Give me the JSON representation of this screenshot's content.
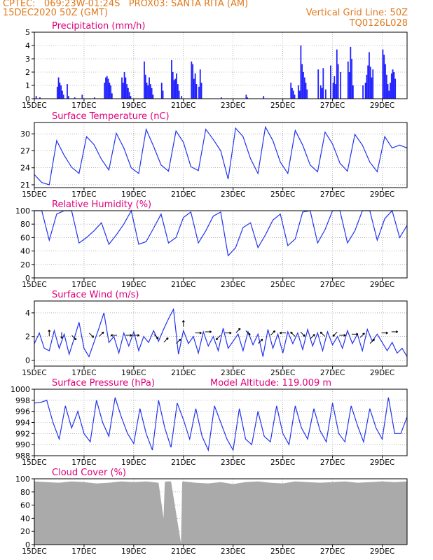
{
  "header": {
    "line1_left": "CPTEC:   069:23W-01:24S   PROX03: SANTA RITA (AM)",
    "line2_left": "15DEC2020 50Z (GMT)",
    "line2_right": "Vertical Grid Line: 50Z",
    "line3_right": "TQ0126L028",
    "accent_color": "#e07a1e",
    "title_color": "#e0007a"
  },
  "x_axis": {
    "tick_labels": [
      "15DEC",
      "17DEC",
      "19DEC",
      "21DEC",
      "23DEC",
      "25DEC",
      "27DEC",
      "29DEC"
    ],
    "tick_days": [
      0,
      2,
      4,
      6,
      8,
      10,
      12,
      14
    ],
    "range_days": [
      0,
      15
    ]
  },
  "chart_data": [
    {
      "id": "precip",
      "type": "bar",
      "title": "Precipitation (mm/h)",
      "ylim": [
        0,
        5
      ],
      "yticks": [
        0,
        1,
        2,
        3,
        4,
        5
      ],
      "color": "#2222ff",
      "series": [
        {
          "x": [
            0.05,
            0.2,
            0.9,
            0.95,
            1.0,
            1.05,
            1.1,
            1.15,
            1.3,
            1.35,
            1.6,
            1.9,
            2.4,
            2.8,
            2.85,
            2.9,
            2.95,
            3.0,
            3.05,
            3.1,
            3.5,
            3.55,
            3.6,
            3.65,
            3.7,
            3.75,
            3.8,
            3.85,
            4.4,
            4.45,
            4.5,
            4.55,
            4.6,
            4.65,
            4.7,
            4.75,
            5.1,
            5.15,
            5.5,
            5.55,
            5.6,
            5.65,
            5.7,
            5.75,
            5.8,
            5.9,
            6.3,
            6.35,
            6.4,
            6.45,
            6.5,
            6.6,
            6.65,
            6.7,
            7.5,
            8.5,
            8.55,
            9.2,
            10.3,
            10.35,
            10.4,
            10.45,
            10.6,
            10.65,
            10.7,
            10.75,
            10.8,
            10.85,
            10.9,
            10.95,
            11.4,
            11.5,
            11.55,
            11.6,
            11.7,
            11.9,
            12.0,
            12.05,
            12.1,
            12.15,
            12.2,
            12.3,
            12.6,
            12.65,
            12.7,
            12.75,
            12.8,
            13.2,
            13.3,
            13.35,
            13.4,
            13.45,
            13.5,
            13.55,
            13.6,
            14.0,
            14.05,
            14.1,
            14.15,
            14.2,
            14.25,
            14.3,
            14.35,
            14.4,
            14.45,
            14.5
          ],
          "values": [
            0.2,
            0.1,
            0.9,
            1.6,
            1.2,
            1.0,
            0.6,
            0.3,
            1.1,
            0.2,
            0.1,
            0.3,
            0.1,
            1.2,
            1.6,
            1.7,
            1.5,
            1.2,
            1.0,
            0.4,
            1.6,
            1.2,
            2.0,
            1.6,
            1.1,
            0.8,
            0.5,
            0.2,
            2.8,
            1.8,
            1.2,
            1.0,
            1.6,
            1.1,
            0.8,
            0.3,
            1.2,
            0.6,
            2.9,
            2.0,
            1.4,
            1.5,
            1.9,
            1.1,
            0.6,
            0.2,
            2.8,
            2.6,
            1.5,
            1.9,
            1.1,
            0.9,
            2.2,
            1.2,
            0.1,
            0.3,
            0.1,
            0.2,
            1.2,
            0.8,
            0.6,
            0.3,
            1.0,
            0.6,
            4.0,
            2.6,
            2.0,
            1.6,
            1.2,
            0.7,
            2.2,
            1.0,
            0.8,
            2.3,
            0.7,
            2.5,
            1.2,
            1.7,
            1.1,
            3.7,
            2.6,
            2.0,
            2.8,
            2.0,
            3.9,
            3.0,
            1.0,
            1.0,
            1.2,
            1.8,
            2.5,
            3.5,
            2.4,
            1.6,
            2.2,
            3.7,
            3.3,
            2.6,
            1.8,
            1.1,
            0.6,
            1.2,
            1.9,
            2.2,
            2.0,
            1.5
          ]
        }
      ]
    },
    {
      "id": "temp",
      "type": "line",
      "title": "Surface Temperature (nC)",
      "ylim": [
        20.5,
        32
      ],
      "yticks": [
        21,
        24,
        27,
        30
      ],
      "color": "#2233ee",
      "series": [
        {
          "x": [
            0,
            0.3,
            0.6,
            0.9,
            1.2,
            1.5,
            1.8,
            2.1,
            2.4,
            2.7,
            3.0,
            3.3,
            3.6,
            3.9,
            4.2,
            4.5,
            4.8,
            5.1,
            5.4,
            5.7,
            6.0,
            6.3,
            6.6,
            6.9,
            7.2,
            7.5,
            7.8,
            8.1,
            8.4,
            8.7,
            9.0,
            9.3,
            9.6,
            9.9,
            10.2,
            10.5,
            10.8,
            11.1,
            11.4,
            11.7,
            12.0,
            12.3,
            12.6,
            12.9,
            13.2,
            13.5,
            13.8,
            14.1,
            14.4,
            14.7,
            15.0
          ],
          "values": [
            22.8,
            21.4,
            21.0,
            28.8,
            26.2,
            24.1,
            23.0,
            29.5,
            28.1,
            25.5,
            23.6,
            30.1,
            27.5,
            24.0,
            23.0,
            30.8,
            27.8,
            24.5,
            23.4,
            30.5,
            28.5,
            24.2,
            23.5,
            30.8,
            29.0,
            27.0,
            22.0,
            31.0,
            29.5,
            25.6,
            23.0,
            31.2,
            28.8,
            25.0,
            23.0,
            30.6,
            28.0,
            24.5,
            23.3,
            30.3,
            28.2,
            24.8,
            23.4,
            29.9,
            28.0,
            25.0,
            23.3,
            29.5,
            27.5,
            28.0,
            27.5
          ]
        }
      ]
    },
    {
      "id": "rh",
      "type": "line",
      "title": "Relative Humidity (%)",
      "ylim": [
        0,
        100
      ],
      "yticks": [
        0,
        20,
        40,
        60,
        80,
        100
      ],
      "color": "#2233ee",
      "series": [
        {
          "x": [
            0,
            0.3,
            0.6,
            0.9,
            1.2,
            1.5,
            1.8,
            2.1,
            2.4,
            2.7,
            3.0,
            3.3,
            3.6,
            3.9,
            4.2,
            4.5,
            4.8,
            5.1,
            5.4,
            5.7,
            6.0,
            6.3,
            6.6,
            6.9,
            7.2,
            7.5,
            7.8,
            8.1,
            8.4,
            8.7,
            9.0,
            9.3,
            9.6,
            9.9,
            10.2,
            10.5,
            10.8,
            11.1,
            11.4,
            11.7,
            12.0,
            12.3,
            12.6,
            12.9,
            13.2,
            13.5,
            13.8,
            14.1,
            14.4,
            14.7,
            15.0
          ],
          "values": [
            100,
            100,
            56,
            95,
            100,
            100,
            52,
            60,
            70,
            82,
            50,
            64,
            80,
            100,
            50,
            54,
            74,
            95,
            52,
            60,
            90,
            98,
            52,
            70,
            92,
            98,
            33,
            45,
            75,
            82,
            45,
            64,
            86,
            95,
            48,
            58,
            98,
            100,
            52,
            72,
            100,
            100,
            52,
            70,
            100,
            100,
            56,
            88,
            100,
            60,
            78
          ]
        }
      ]
    },
    {
      "id": "wind",
      "type": "line",
      "title": "Surface Wind (m/s)",
      "ylim": [
        -0.5,
        5
      ],
      "yticks": [
        0,
        2,
        4
      ],
      "color": "#2233ee",
      "series": [
        {
          "x": [
            0,
            0.2,
            0.4,
            0.6,
            0.8,
            1.0,
            1.2,
            1.4,
            1.6,
            1.8,
            2.0,
            2.2,
            2.4,
            2.6,
            2.8,
            3.0,
            3.2,
            3.4,
            3.6,
            3.8,
            4.0,
            4.2,
            4.4,
            4.6,
            4.8,
            5.0,
            5.2,
            5.4,
            5.6,
            5.8,
            6.0,
            6.2,
            6.4,
            6.6,
            6.8,
            7.0,
            7.2,
            7.4,
            7.6,
            7.8,
            8.0,
            8.2,
            8.4,
            8.6,
            8.8,
            9.0,
            9.2,
            9.4,
            9.6,
            9.8,
            10.0,
            10.2,
            10.4,
            10.6,
            10.8,
            11.0,
            11.2,
            11.4,
            11.6,
            11.8,
            12.0,
            12.2,
            12.4,
            12.6,
            12.8,
            13.0,
            13.2,
            13.4,
            13.6,
            13.8,
            14.0,
            14.2,
            14.4,
            14.6,
            14.8,
            15.0
          ],
          "values": [
            1.4,
            2.3,
            1.0,
            0.8,
            2.5,
            1.0,
            2.2,
            0.5,
            1.8,
            3.2,
            1.0,
            0.3,
            1.5,
            2.7,
            4.0,
            1.5,
            2.0,
            0.6,
            2.3,
            1.2,
            2.4,
            0.8,
            2.0,
            1.5,
            2.5,
            1.6,
            2.6,
            3.5,
            4.3,
            0.5,
            2.5,
            1.4,
            2.0,
            0.6,
            2.4,
            1.2,
            2.0,
            0.8,
            2.7,
            1.0,
            1.6,
            2.2,
            0.8,
            2.4,
            1.3,
            2.2,
            0.3,
            2.6,
            1.0,
            2.2,
            0.6,
            2.4,
            1.4,
            2.3,
            0.9,
            2.6,
            1.2,
            2.3,
            0.8,
            2.4,
            1.3,
            2.0,
            1.0,
            2.5,
            1.4,
            2.2,
            0.8,
            2.6,
            1.6,
            2.2,
            1.5,
            0.8,
            1.5,
            0.6,
            1.0,
            0.3
          ]
        }
      ],
      "arrows": [
        {
          "x": 0.6,
          "y": 2.3,
          "dx": 0,
          "dy": 1
        },
        {
          "x": 1.1,
          "y": 2.1,
          "dx": 0,
          "dy": -1
        },
        {
          "x": 1.6,
          "y": 1.9,
          "dx": 0.7,
          "dy": -0.7
        },
        {
          "x": 2.3,
          "y": 2.1,
          "dx": 0.7,
          "dy": -0.7
        },
        {
          "x": 2.7,
          "y": 2.2,
          "dx": 0.7,
          "dy": 0.7
        },
        {
          "x": 3.2,
          "y": 2.1,
          "dx": -1,
          "dy": 0
        },
        {
          "x": 3.8,
          "y": 2.1,
          "dx": 1,
          "dy": 0
        },
        {
          "x": 4.1,
          "y": 2.1,
          "dx": 1,
          "dy": 0
        },
        {
          "x": 4.9,
          "y": 2.0,
          "dx": 0.7,
          "dy": -0.7
        },
        {
          "x": 5.3,
          "y": 1.7,
          "dx": 0.7,
          "dy": 0.7
        },
        {
          "x": 5.8,
          "y": 1.6,
          "dx": 0.7,
          "dy": 0.7
        },
        {
          "x": 6.0,
          "y": 3.1,
          "dx": 0,
          "dy": 1
        },
        {
          "x": 6.6,
          "y": 2.3,
          "dx": 1,
          "dy": 0
        },
        {
          "x": 7.0,
          "y": 2.4,
          "dx": 1,
          "dy": 0
        },
        {
          "x": 7.4,
          "y": 1.9,
          "dx": -0.7,
          "dy": -0.7
        },
        {
          "x": 7.8,
          "y": 2.3,
          "dx": 1,
          "dy": 0
        },
        {
          "x": 8.2,
          "y": 2.5,
          "dx": 0.7,
          "dy": 0.7
        },
        {
          "x": 8.6,
          "y": 2.3,
          "dx": 0.7,
          "dy": -0.7
        },
        {
          "x": 9.1,
          "y": 1.6,
          "dx": 0.7,
          "dy": 0.7
        },
        {
          "x": 9.6,
          "y": 2.3,
          "dx": 0.7,
          "dy": 0.7
        },
        {
          "x": 10.0,
          "y": 2.3,
          "dx": -1,
          "dy": 0
        },
        {
          "x": 10.4,
          "y": 2.2,
          "dx": -0.7,
          "dy": 0.7
        },
        {
          "x": 10.8,
          "y": 2.2,
          "dx": 0.7,
          "dy": -0.7
        },
        {
          "x": 11.2,
          "y": 2.0,
          "dx": 0.7,
          "dy": 0.7
        },
        {
          "x": 11.6,
          "y": 2.2,
          "dx": -0.7,
          "dy": 0.7
        },
        {
          "x": 12.1,
          "y": 2.2,
          "dx": -0.7,
          "dy": -0.7
        },
        {
          "x": 12.4,
          "y": 2.1,
          "dx": 1,
          "dy": 0
        },
        {
          "x": 12.9,
          "y": 2.2,
          "dx": 1,
          "dy": 0
        },
        {
          "x": 13.2,
          "y": 2.1,
          "dx": 0.7,
          "dy": 0.7
        },
        {
          "x": 13.6,
          "y": 1.6,
          "dx": 0.7,
          "dy": 0.7
        },
        {
          "x": 14.1,
          "y": 2.3,
          "dx": 1,
          "dy": 0
        },
        {
          "x": 14.5,
          "y": 2.4,
          "dx": 1,
          "dy": 0
        }
      ]
    },
    {
      "id": "pressure",
      "type": "line",
      "title": "Surface Pressure (hPa)",
      "subtitle": "Model Altitude: 119.009  m",
      "ylim": [
        988,
        1000
      ],
      "yticks": [
        988,
        990,
        992,
        994,
        996,
        998,
        1000
      ],
      "color": "#2233ee",
      "series": [
        {
          "x": [
            0,
            0.25,
            0.5,
            0.75,
            1.0,
            1.25,
            1.5,
            1.75,
            2.0,
            2.25,
            2.5,
            2.75,
            3.0,
            3.25,
            3.5,
            3.75,
            4.0,
            4.25,
            4.5,
            4.75,
            5.0,
            5.25,
            5.5,
            5.75,
            6.0,
            6.25,
            6.5,
            6.75,
            7.0,
            7.25,
            7.5,
            7.75,
            8.0,
            8.25,
            8.5,
            8.75,
            9.0,
            9.25,
            9.5,
            9.75,
            10.0,
            10.25,
            10.5,
            10.75,
            11.0,
            11.25,
            11.5,
            11.75,
            12.0,
            12.25,
            12.5,
            12.75,
            13.0,
            13.25,
            13.5,
            13.75,
            14.0,
            14.25,
            14.5,
            14.75,
            15.0
          ],
          "values": [
            997.5,
            997.6,
            998.0,
            994.0,
            991.0,
            997.0,
            993.0,
            996.0,
            992.0,
            990.5,
            998.0,
            994.0,
            991.5,
            998.5,
            995.0,
            992.0,
            990.2,
            996.5,
            992.0,
            989.0,
            998.0,
            993.0,
            989.5,
            997.5,
            994.5,
            991.0,
            996.5,
            991.5,
            989.0,
            997.0,
            994.0,
            991.0,
            989.0,
            996.5,
            991.0,
            990.0,
            996.0,
            991.5,
            990.5,
            997.0,
            992.0,
            990.0,
            997.0,
            993.0,
            991.0,
            996.5,
            992.5,
            990.5,
            997.5,
            992.0,
            990.5,
            997.0,
            993.5,
            990.5,
            996.5,
            993.0,
            991.0,
            998.5,
            992.0,
            992.0,
            995.0
          ]
        }
      ]
    },
    {
      "id": "cloud",
      "type": "area",
      "title": "Cloud Cover (%)",
      "ylim": [
        0,
        100
      ],
      "yticks": [
        0,
        20,
        40,
        60,
        80,
        100
      ],
      "color": "#aaaaaa",
      "series": [
        {
          "x": [
            0,
            0.5,
            1.0,
            1.5,
            2.0,
            2.5,
            3.0,
            3.5,
            4.0,
            4.5,
            5.0,
            5.2,
            5.25,
            5.3,
            5.5,
            5.9,
            5.95,
            6.0,
            6.5,
            7.0,
            7.5,
            8.0,
            8.5,
            9.0,
            9.5,
            10.0,
            10.5,
            11.0,
            11.5,
            12.0,
            12.5,
            13.0,
            13.5,
            14.0,
            14.5,
            15.0
          ],
          "values": [
            96,
            95,
            94,
            96,
            95,
            93,
            94,
            96,
            95,
            96,
            94,
            40,
            95,
            96,
            96,
            2,
            95,
            96,
            94,
            93,
            95,
            92,
            95,
            96,
            94,
            93,
            96,
            95,
            94,
            95,
            96,
            94,
            95,
            96,
            95,
            96
          ]
        }
      ]
    }
  ]
}
